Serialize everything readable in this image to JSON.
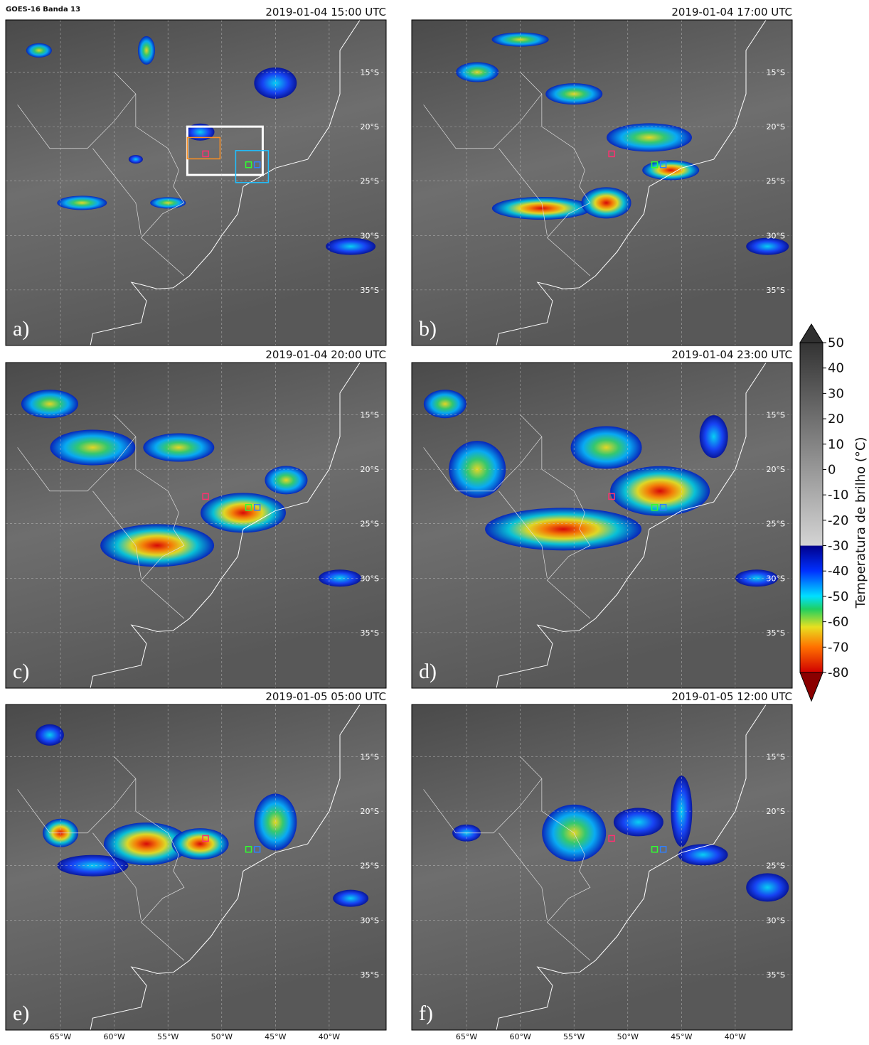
{
  "header": {
    "title": "GOES-16 Banda 13"
  },
  "panels": [
    {
      "label": "a)",
      "time": "2019-01-04 15:00 UTC"
    },
    {
      "label": "b)",
      "time": "2019-01-04 17:00 UTC"
    },
    {
      "label": "c)",
      "time": "2019-01-04 20:00 UTC"
    },
    {
      "label": "d)",
      "time": "2019-01-04 23:00 UTC"
    },
    {
      "label": "e)",
      "time": "2019-01-05 05:00 UTC"
    },
    {
      "label": "f)",
      "time": "2019-01-05 12:00 UTC"
    }
  ],
  "map": {
    "xlim": [
      -70.1,
      -34.7
    ],
    "ylim": [
      -40.1,
      -10.2
    ],
    "grid": true,
    "xticks": [
      {
        "value": -65,
        "label": "65°W"
      },
      {
        "value": -60,
        "label": "60°W"
      },
      {
        "value": -55,
        "label": "55°W"
      },
      {
        "value": -50,
        "label": "50°W"
      },
      {
        "value": -45,
        "label": "45°W"
      },
      {
        "value": -40,
        "label": "40°W"
      }
    ],
    "yticks": [
      {
        "value": -15,
        "label": "15°S"
      },
      {
        "value": -20,
        "label": "20°S"
      },
      {
        "value": -25,
        "label": "25°S"
      },
      {
        "value": -30,
        "label": "30°S"
      },
      {
        "value": -35,
        "label": "35°S"
      }
    ]
  },
  "colorbar": {
    "label": "Temperatura de brilho (°C)",
    "ylim": [
      -80,
      50
    ],
    "ticks": [
      50,
      40,
      30,
      20,
      10,
      0,
      -10,
      -20,
      -30,
      -40,
      -50,
      -60,
      -70,
      -80
    ]
  }
}
